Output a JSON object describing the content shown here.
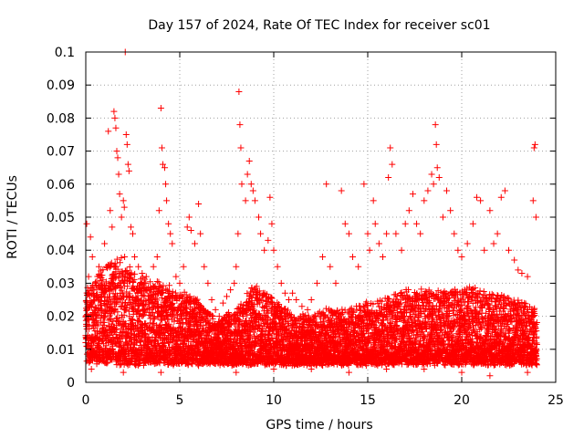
{
  "chart_data": {
    "type": "scatter",
    "title": "Day 157 of 2024, Rate Of TEC Index for receiver sc01",
    "xlabel": "GPS time / hours",
    "ylabel": "ROTI / TECUs",
    "xlim": [
      0,
      25
    ],
    "ylim": [
      0,
      0.1
    ],
    "x_ticks": [
      "0",
      "5",
      "10",
      "15",
      "20",
      "25"
    ],
    "y_ticks": [
      "0",
      "0.01",
      "0.02",
      "0.03",
      "0.04",
      "0.05",
      "0.06",
      "0.07",
      "0.08",
      "0.09",
      "0.1"
    ],
    "grid": true,
    "marker": "+",
    "marker_color": "#ff0000",
    "series": [
      {
        "name": "sc01",
        "points": [
          [
            0.05,
            0.048
          ],
          [
            0.15,
            0.032
          ],
          [
            0.25,
            0.044
          ],
          [
            0.35,
            0.038
          ],
          [
            0.5,
            0.03
          ],
          [
            0.7,
            0.035
          ],
          [
            0.9,
            0.028
          ],
          [
            1.0,
            0.042
          ],
          [
            1.1,
            0.035
          ],
          [
            1.2,
            0.076
          ],
          [
            1.3,
            0.052
          ],
          [
            1.4,
            0.047
          ],
          [
            1.5,
            0.082
          ],
          [
            1.55,
            0.08
          ],
          [
            1.6,
            0.077
          ],
          [
            1.65,
            0.07
          ],
          [
            1.7,
            0.068
          ],
          [
            1.75,
            0.063
          ],
          [
            1.8,
            0.057
          ],
          [
            1.9,
            0.05
          ],
          [
            2.0,
            0.055
          ],
          [
            2.05,
            0.053
          ],
          [
            2.1,
            0.1
          ],
          [
            2.15,
            0.075
          ],
          [
            2.2,
            0.072
          ],
          [
            2.25,
            0.066
          ],
          [
            2.3,
            0.064
          ],
          [
            2.4,
            0.047
          ],
          [
            2.5,
            0.045
          ],
          [
            2.6,
            0.038
          ],
          [
            2.8,
            0.035
          ],
          [
            3.0,
            0.033
          ],
          [
            3.2,
            0.03
          ],
          [
            3.4,
            0.028
          ],
          [
            3.6,
            0.035
          ],
          [
            3.8,
            0.038
          ],
          [
            3.9,
            0.052
          ],
          [
            4.0,
            0.083
          ],
          [
            4.05,
            0.071
          ],
          [
            4.1,
            0.066
          ],
          [
            4.2,
            0.065
          ],
          [
            4.25,
            0.06
          ],
          [
            4.3,
            0.055
          ],
          [
            4.4,
            0.048
          ],
          [
            4.5,
            0.045
          ],
          [
            4.6,
            0.042
          ],
          [
            4.8,
            0.032
          ],
          [
            5.0,
            0.03
          ],
          [
            5.2,
            0.035
          ],
          [
            5.4,
            0.047
          ],
          [
            5.5,
            0.05
          ],
          [
            5.6,
            0.046
          ],
          [
            5.8,
            0.042
          ],
          [
            6.0,
            0.054
          ],
          [
            6.1,
            0.045
          ],
          [
            6.3,
            0.035
          ],
          [
            6.5,
            0.03
          ],
          [
            6.7,
            0.025
          ],
          [
            6.9,
            0.022
          ],
          [
            7.1,
            0.02
          ],
          [
            7.3,
            0.024
          ],
          [
            7.5,
            0.026
          ],
          [
            7.7,
            0.028
          ],
          [
            7.9,
            0.03
          ],
          [
            8.0,
            0.035
          ],
          [
            8.1,
            0.045
          ],
          [
            8.15,
            0.088
          ],
          [
            8.2,
            0.078
          ],
          [
            8.25,
            0.071
          ],
          [
            8.3,
            0.06
          ],
          [
            8.5,
            0.055
          ],
          [
            8.6,
            0.063
          ],
          [
            8.7,
            0.067
          ],
          [
            8.8,
            0.06
          ],
          [
            8.9,
            0.058
          ],
          [
            9.0,
            0.055
          ],
          [
            9.2,
            0.05
          ],
          [
            9.3,
            0.045
          ],
          [
            9.5,
            0.04
          ],
          [
            9.7,
            0.043
          ],
          [
            9.8,
            0.056
          ],
          [
            9.9,
            0.048
          ],
          [
            10.0,
            0.04
          ],
          [
            10.2,
            0.035
          ],
          [
            10.4,
            0.03
          ],
          [
            10.6,
            0.027
          ],
          [
            10.8,
            0.025
          ],
          [
            11.0,
            0.027
          ],
          [
            11.2,
            0.025
          ],
          [
            11.5,
            0.023
          ],
          [
            11.8,
            0.022
          ],
          [
            12.0,
            0.025
          ],
          [
            12.3,
            0.03
          ],
          [
            12.6,
            0.038
          ],
          [
            12.8,
            0.06
          ],
          [
            13.0,
            0.035
          ],
          [
            13.3,
            0.03
          ],
          [
            13.6,
            0.058
          ],
          [
            13.8,
            0.048
          ],
          [
            14.0,
            0.045
          ],
          [
            14.2,
            0.038
          ],
          [
            14.5,
            0.035
          ],
          [
            14.8,
            0.06
          ],
          [
            15.0,
            0.045
          ],
          [
            15.1,
            0.04
          ],
          [
            15.3,
            0.055
          ],
          [
            15.4,
            0.048
          ],
          [
            15.6,
            0.042
          ],
          [
            15.8,
            0.038
          ],
          [
            16.0,
            0.045
          ],
          [
            16.1,
            0.062
          ],
          [
            16.2,
            0.071
          ],
          [
            16.3,
            0.066
          ],
          [
            16.5,
            0.045
          ],
          [
            16.8,
            0.04
          ],
          [
            17.0,
            0.048
          ],
          [
            17.2,
            0.052
          ],
          [
            17.4,
            0.057
          ],
          [
            17.6,
            0.048
          ],
          [
            17.8,
            0.045
          ],
          [
            18.0,
            0.055
          ],
          [
            18.2,
            0.058
          ],
          [
            18.4,
            0.063
          ],
          [
            18.5,
            0.06
          ],
          [
            18.6,
            0.078
          ],
          [
            18.65,
            0.072
          ],
          [
            18.7,
            0.065
          ],
          [
            18.8,
            0.062
          ],
          [
            19.0,
            0.05
          ],
          [
            19.2,
            0.058
          ],
          [
            19.4,
            0.052
          ],
          [
            19.6,
            0.045
          ],
          [
            19.8,
            0.04
          ],
          [
            20.0,
            0.038
          ],
          [
            20.3,
            0.042
          ],
          [
            20.6,
            0.048
          ],
          [
            20.8,
            0.056
          ],
          [
            21.0,
            0.055
          ],
          [
            21.2,
            0.04
          ],
          [
            21.5,
            0.052
          ],
          [
            21.7,
            0.042
          ],
          [
            21.9,
            0.045
          ],
          [
            22.1,
            0.056
          ],
          [
            22.3,
            0.058
          ],
          [
            22.5,
            0.04
          ],
          [
            22.8,
            0.037
          ],
          [
            23.0,
            0.034
          ],
          [
            23.2,
            0.033
          ],
          [
            23.5,
            0.032
          ],
          [
            23.8,
            0.055
          ],
          [
            23.85,
            0.071
          ],
          [
            23.9,
            0.072
          ],
          [
            23.95,
            0.05
          ],
          [
            0.3,
            0.004
          ],
          [
            2.0,
            0.003
          ],
          [
            4.0,
            0.003
          ],
          [
            6.0,
            0.005
          ],
          [
            8.0,
            0.003
          ],
          [
            10.0,
            0.004
          ],
          [
            12.0,
            0.004
          ],
          [
            14.0,
            0.003
          ],
          [
            16.0,
            0.004
          ],
          [
            18.0,
            0.004
          ],
          [
            20.0,
            0.003
          ],
          [
            21.5,
            0.002
          ],
          [
            23.5,
            0.003
          ]
        ]
      }
    ],
    "envelope": {
      "note": "background density band of ROTI values",
      "x": [
        0,
        1,
        2,
        3,
        4,
        5,
        6,
        7,
        8,
        9,
        10,
        11,
        12,
        13,
        14,
        15,
        16,
        17,
        18,
        19,
        20,
        21,
        22,
        23,
        24
      ],
      "low": [
        0.007,
        0.006,
        0.006,
        0.006,
        0.006,
        0.006,
        0.006,
        0.006,
        0.006,
        0.006,
        0.006,
        0.006,
        0.006,
        0.006,
        0.006,
        0.006,
        0.006,
        0.006,
        0.006,
        0.006,
        0.006,
        0.006,
        0.006,
        0.006,
        0.006
      ],
      "high": [
        0.028,
        0.035,
        0.038,
        0.032,
        0.03,
        0.027,
        0.025,
        0.018,
        0.022,
        0.03,
        0.025,
        0.02,
        0.02,
        0.022,
        0.022,
        0.024,
        0.026,
        0.028,
        0.028,
        0.027,
        0.028,
        0.028,
        0.027,
        0.025,
        0.022
      ]
    }
  }
}
